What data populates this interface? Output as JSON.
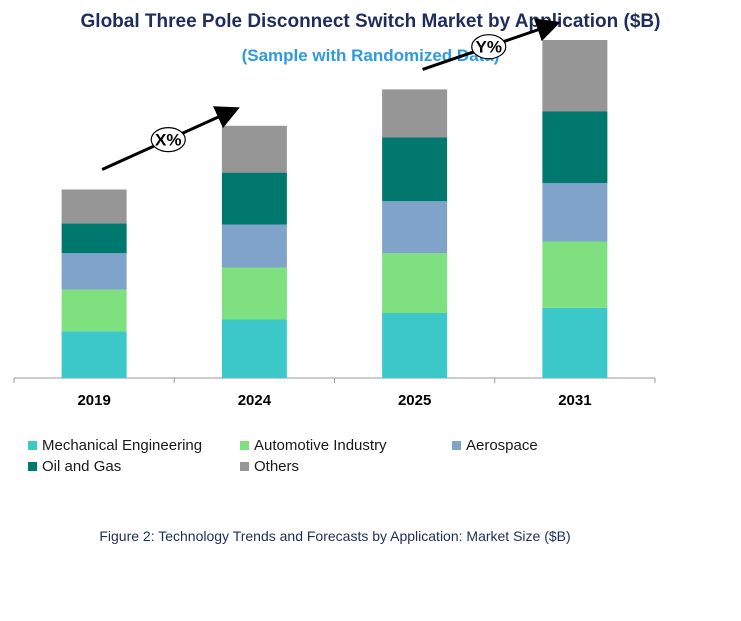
{
  "title": "Global Three Pole Disconnect Switch Market by Application ($B)",
  "subtitle": "(Sample with Randomized Data)",
  "caption": "Figure 2: Technology  Trends and Forecasts by Application: Market Size ($B)",
  "chart_data": {
    "type": "bar",
    "stacked": true,
    "categories": [
      "2019",
      "2024",
      "2025",
      "2031"
    ],
    "series": [
      {
        "name": "Mechanical Engineering",
        "color": "#3cc8c8",
        "values": [
          36,
          45,
          50,
          54
        ]
      },
      {
        "name": "Automotive Industry",
        "color": "#7ee07e",
        "values": [
          32,
          40,
          46,
          51
        ]
      },
      {
        "name": "Aerospace",
        "color": "#7fa3c9",
        "values": [
          28,
          33,
          40,
          45
        ]
      },
      {
        "name": "Oil and Gas",
        "color": "#00786e",
        "values": [
          23,
          40,
          49,
          55
        ]
      },
      {
        "name": "Others",
        "color": "#969696",
        "values": [
          26,
          36,
          37,
          55
        ]
      }
    ],
    "annotations": [
      {
        "label": "X%",
        "from": "2019",
        "to": "2024"
      },
      {
        "label": "Y%",
        "from": "2025",
        "to": "2031"
      }
    ],
    "ylim": [
      0,
      260
    ],
    "grid": false,
    "legend_position": "bottom"
  }
}
